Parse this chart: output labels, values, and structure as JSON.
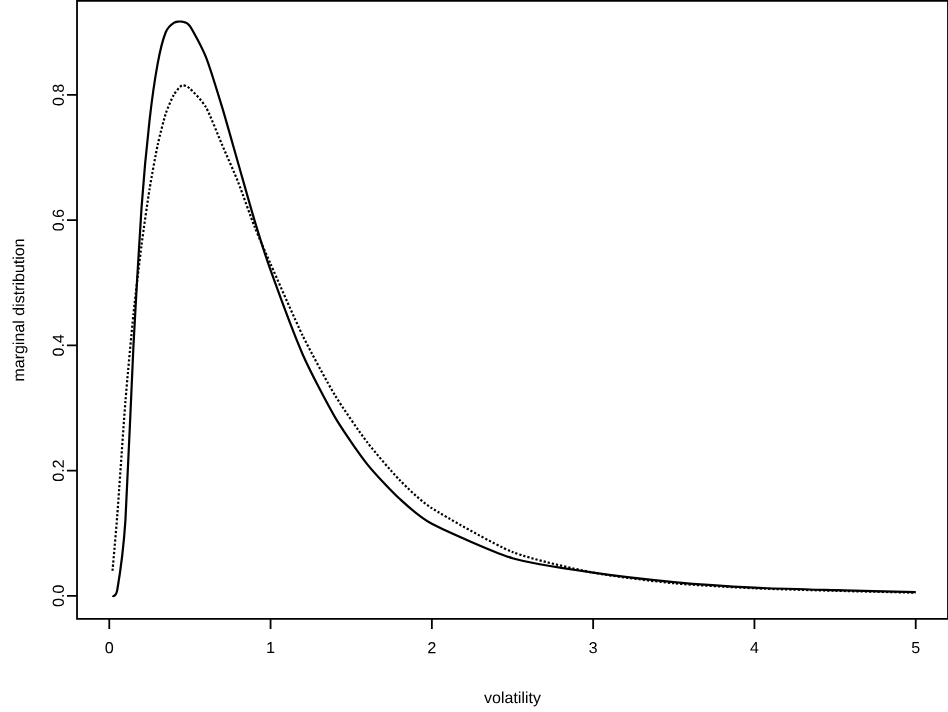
{
  "chart_data": {
    "type": "line",
    "xlabel": "volatility",
    "ylabel": "marginal distribution",
    "x": [
      0.02,
      0.05,
      0.1,
      0.15,
      0.2,
      0.25,
      0.3,
      0.35,
      0.4,
      0.45,
      0.5,
      0.6,
      0.7,
      0.8,
      0.9,
      1.0,
      1.2,
      1.4,
      1.6,
      1.8,
      2.0,
      2.5,
      3,
      3.5,
      4,
      4.5,
      5
    ],
    "series": [
      {
        "color": "#000000",
        "line_style": "solid",
        "values": [
          0.0,
          0.01,
          0.12,
          0.4,
          0.62,
          0.76,
          0.85,
          0.9,
          0.915,
          0.917,
          0.91,
          0.86,
          0.78,
          0.69,
          0.6,
          0.52,
          0.385,
          0.285,
          0.21,
          0.155,
          0.115,
          0.06,
          0.037,
          0.022,
          0.013,
          0.009,
          0.006
        ]
      },
      {
        "color": "#000000",
        "line_style": "dotted",
        "values": [
          0.04,
          0.13,
          0.31,
          0.45,
          0.56,
          0.65,
          0.72,
          0.77,
          0.8,
          0.815,
          0.81,
          0.78,
          0.72,
          0.66,
          0.59,
          0.53,
          0.415,
          0.32,
          0.245,
          0.185,
          0.14,
          0.07,
          0.037,
          0.02,
          0.012,
          0.008,
          0.005
        ]
      }
    ],
    "xlim": [
      -0.2,
      5.2
    ],
    "ylim": [
      -0.037,
      0.95
    ],
    "xticks": [
      0,
      1,
      2,
      3,
      4,
      5
    ],
    "yticks": [
      {
        "value": 0,
        "label": "0.0"
      },
      {
        "value": 0.2,
        "label": "0.2"
      },
      {
        "value": 0.4,
        "label": "0.4"
      },
      {
        "value": 0.6,
        "label": "0.6"
      },
      {
        "value": 0.8,
        "label": "0.8"
      }
    ]
  }
}
